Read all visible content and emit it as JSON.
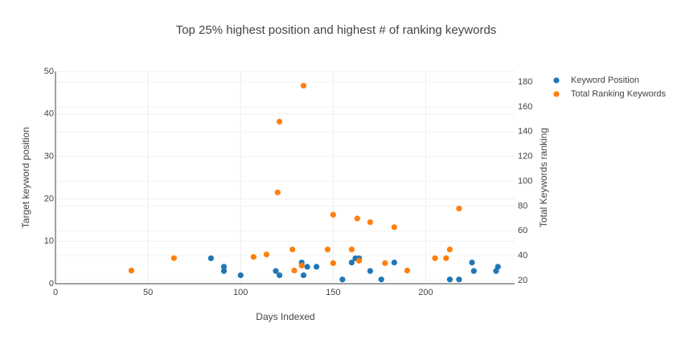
{
  "chart_data": {
    "type": "scatter",
    "title": "Top 25% highest position and highest # of ranking keywords",
    "x_label": "Days Indexed",
    "y_label": "Target keyword position",
    "y2_label": "Total Keywords ranking",
    "xlim": [
      0,
      248
    ],
    "xticks": [
      0,
      50,
      100,
      150,
      200
    ],
    "ylim": [
      0,
      50
    ],
    "yticks": [
      0,
      10,
      20,
      30,
      40,
      50
    ],
    "y2lim": [
      17.4,
      188.4
    ],
    "y2ticks": [
      20,
      40,
      60,
      80,
      100,
      120,
      140,
      160,
      180
    ],
    "grid": true,
    "legend": "top-right",
    "series": [
      {
        "name": "Keyword Position",
        "color": "#1f77b4",
        "x": [
          84,
          91,
          91,
          100,
          119,
          121,
          133,
          134,
          136,
          141,
          155,
          160,
          162,
          164,
          170,
          176,
          183,
          213,
          218,
          225,
          226,
          238,
          239
        ],
        "values": [
          6,
          4,
          3,
          2,
          3,
          2,
          5,
          2,
          4,
          4,
          1,
          5,
          6,
          6,
          3,
          1,
          5,
          1,
          1,
          5,
          3,
          3,
          4
        ]
      },
      {
        "name": "Total Ranking Keywords",
        "color": "#ff7f0e",
        "axis": "y2",
        "x": [
          41,
          64,
          107,
          114,
          120,
          121,
          128,
          129,
          133,
          134,
          147,
          150,
          150,
          160,
          163,
          164,
          170,
          178,
          183,
          190,
          205,
          211,
          213,
          218
        ],
        "values": [
          28,
          38,
          39,
          41,
          91,
          148,
          45,
          28,
          32,
          177,
          45,
          73,
          34,
          45,
          70,
          36,
          67,
          34,
          63,
          28,
          38,
          38,
          45,
          78
        ]
      }
    ]
  }
}
